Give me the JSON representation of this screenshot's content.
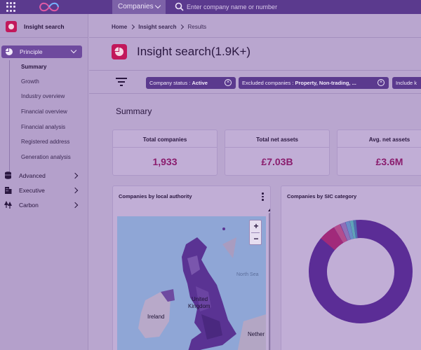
{
  "topbar": {
    "companies_label": "Companies",
    "search_placeholder": "Enter company name or number"
  },
  "sidebar": {
    "title": "Insight search",
    "principle_label": "Principle",
    "principle_items": [
      "Summary",
      "Growth",
      "Industry overview",
      "Financial overview",
      "Financial analysis",
      "Registered address",
      "Generation analysis"
    ],
    "nav_items": [
      "Advanced",
      "Executive",
      "Carbon"
    ]
  },
  "breadcrumb": {
    "home": "Home",
    "section": "Insight search",
    "current": "Results"
  },
  "page": {
    "title": "Insight search(1.9K+)"
  },
  "filters": [
    {
      "label": "Company status : ",
      "value": "Active"
    },
    {
      "label": "Excluded companies : ",
      "value": "Property, Non-trading, ..."
    },
    {
      "label": "Include k",
      "value": ""
    }
  ],
  "summary": {
    "title": "Summary",
    "cards": [
      {
        "label": "Total companies",
        "value": "1,933"
      },
      {
        "label": "Total net assets",
        "value": "£7.03B"
      },
      {
        "label": "Avg. net assets",
        "value": "£3.6M"
      }
    ]
  },
  "panels": {
    "map_title": "Companies by local authority",
    "sic_title": "Companies by SIC category",
    "map_labels": {
      "ireland": "Ireland",
      "united_kingdom_1": "United",
      "united_kingdom_2": "Kingdom",
      "netherlands": "Nether",
      "north_sea": "North Sea"
    },
    "zoom_in": "+",
    "zoom_out": "−"
  },
  "colors": {
    "accent": "#5b3a8e",
    "brand_pink": "#c2185b",
    "value_text": "#8a1d6e"
  }
}
